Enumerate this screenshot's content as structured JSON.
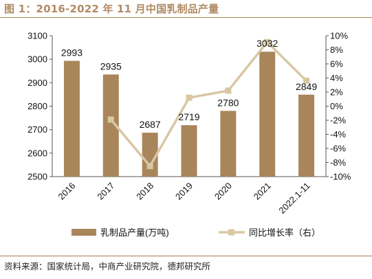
{
  "title": "图 1：2016-2022 年 11 月中国乳制品产量",
  "source": "资料来源：国家统计局，中商产业研究院，德邦研究所",
  "colors": {
    "bar": "#a9855b",
    "line": "#d8c7a2",
    "title": "#b08a63",
    "rule": "#a67c52"
  },
  "chart_data": {
    "type": "bar",
    "categories": [
      "2016",
      "2017",
      "2018",
      "2019",
      "2020",
      "2021",
      "2022.1-11"
    ],
    "series": [
      {
        "name": "乳制品产量(万吨)",
        "type": "bar",
        "axis": "left",
        "values": [
          2993,
          2935,
          2687,
          2719,
          2780,
          3032,
          2849
        ],
        "labels": [
          "2993",
          "2935",
          "2687",
          "2719",
          "2780",
          "3032",
          "2849"
        ]
      },
      {
        "name": "同比增长率（右）",
        "type": "line",
        "axis": "right",
        "values": [
          null,
          -1.9,
          -8.5,
          1.2,
          2.2,
          9.1,
          3.6
        ]
      }
    ],
    "y_left": {
      "lim": [
        2500,
        3100
      ],
      "ticks": [
        "2500",
        "2600",
        "2700",
        "2800",
        "2900",
        "3000",
        "3100"
      ]
    },
    "y_right": {
      "lim": [
        -10,
        10
      ],
      "ticks": [
        "-10%",
        "-8%",
        "-6%",
        "-4%",
        "-2%",
        "0%",
        "2%",
        "4%",
        "6%",
        "8%",
        "10%"
      ]
    },
    "legend": "bottom",
    "grid": false
  }
}
